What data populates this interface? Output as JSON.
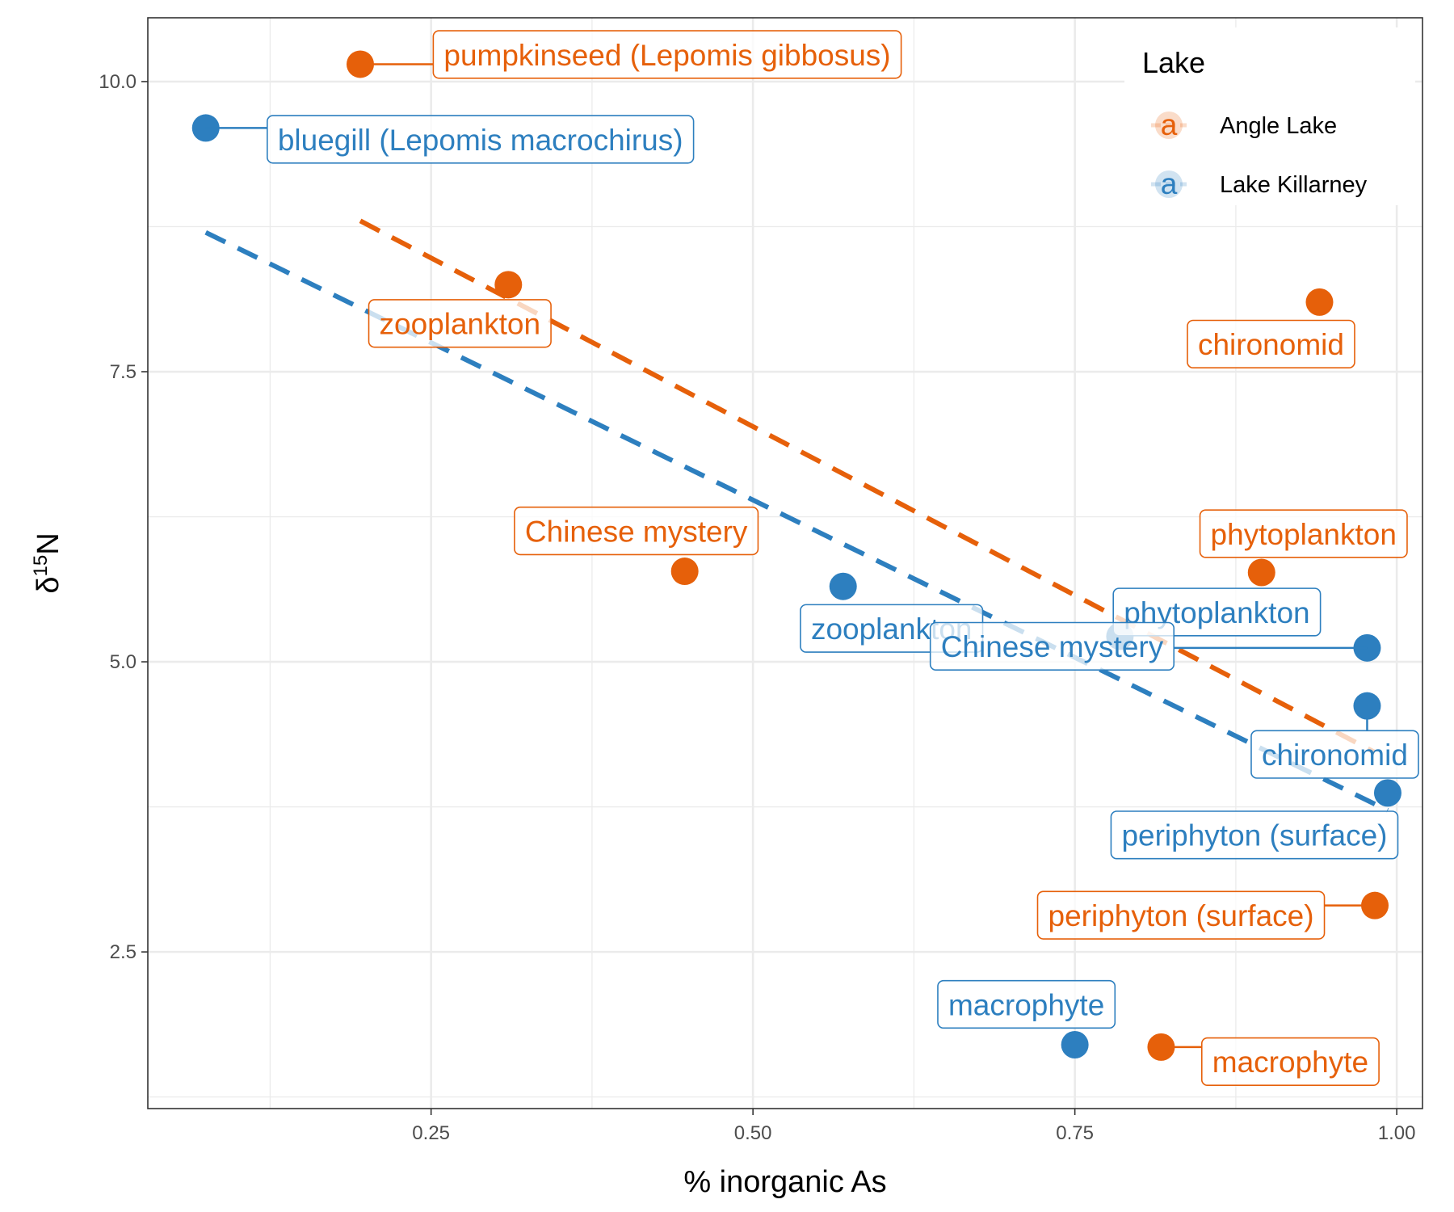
{
  "chart_data": {
    "type": "scatter",
    "title": "",
    "xlabel": "% inorganic As",
    "ylabel_main": "δ",
    "ylabel_sup": "15",
    "ylabel_tail": "N",
    "xlim": [
      0.03,
      1.02
    ],
    "ylim": [
      1.15,
      10.55
    ],
    "x_ticks": [
      0.25,
      0.5,
      0.75,
      1.0
    ],
    "x_tick_labels": [
      "0.25",
      "0.50",
      "0.75",
      "1.00"
    ],
    "y_ticks": [
      2.5,
      5.0,
      7.5,
      10.0
    ],
    "y_tick_labels": [
      "2.5",
      "5.0",
      "7.5",
      "10.0"
    ],
    "grid": true,
    "legend_placement": "top-right",
    "legend_title": "Lake",
    "legend_glyph": "a",
    "series": [
      {
        "name": "Angle Lake",
        "color": "#e6600a",
        "points": [
          {
            "x": 0.195,
            "y": 10.15,
            "label": "pumpkinseed (Lepomis gibbosus)"
          },
          {
            "x": 0.31,
            "y": 8.25,
            "label": "zooplankton"
          },
          {
            "x": 0.447,
            "y": 5.78,
            "label": "Chinese mystery"
          },
          {
            "x": 0.94,
            "y": 8.1,
            "label": "chironomid"
          },
          {
            "x": 0.895,
            "y": 5.77,
            "label": "phytoplankton"
          },
          {
            "x": 0.983,
            "y": 2.9,
            "label": "periphyton (surface)"
          },
          {
            "x": 0.817,
            "y": 1.68,
            "label": "macrophyte"
          }
        ],
        "trend": {
          "x": [
            0.195,
            0.983
          ],
          "y": [
            8.8,
            4.22
          ]
        }
      },
      {
        "name": "Lake Killarney",
        "color": "#2d7fbf",
        "points": [
          {
            "x": 0.075,
            "y": 9.6,
            "label": "bluegill (Lepomis macrochirus)"
          },
          {
            "x": 0.57,
            "y": 5.65,
            "label": "zooplankton"
          },
          {
            "x": 0.785,
            "y": 5.22,
            "label": "phytoplankton"
          },
          {
            "x": 0.977,
            "y": 5.12,
            "label": "Chinese mystery"
          },
          {
            "x": 0.977,
            "y": 4.62,
            "label": "chironomid"
          },
          {
            "x": 0.993,
            "y": 3.87,
            "label": "periphyton (surface)"
          },
          {
            "x": 0.75,
            "y": 1.7,
            "label": "macrophyte"
          }
        ],
        "trend": {
          "x": [
            0.075,
            0.993
          ],
          "y": [
            8.7,
            3.72
          ]
        }
      }
    ]
  }
}
